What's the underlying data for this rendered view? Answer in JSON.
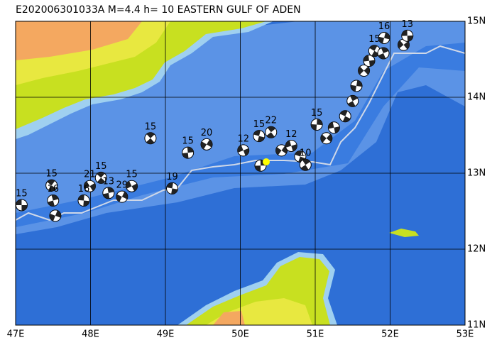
{
  "map": {
    "title": "E202006301033A M=4.4 h= 10 EASTERN GULF OF ADEN",
    "lonlim": [
      47,
      53
    ],
    "latlim": [
      11,
      15
    ],
    "lon_ticks": [
      {
        "value": 47,
        "label": "47E"
      },
      {
        "value": 48,
        "label": "48E"
      },
      {
        "value": 49,
        "label": "49E"
      },
      {
        "value": 50,
        "label": "50E"
      },
      {
        "value": 51,
        "label": "51E"
      },
      {
        "value": 52,
        "label": "52E"
      },
      {
        "value": 53,
        "label": "53E"
      }
    ],
    "lat_ticks": [
      {
        "value": 11,
        "label": "11N"
      },
      {
        "value": 12,
        "label": "12N"
      },
      {
        "value": 13,
        "label": "13N"
      },
      {
        "value": 14,
        "label": "14N"
      },
      {
        "value": 15,
        "label": "15N"
      }
    ],
    "events": [
      {
        "lon": 47.08,
        "lat": 12.58,
        "depth": "15"
      },
      {
        "lon": 47.48,
        "lat": 12.84,
        "depth": "15"
      },
      {
        "lon": 47.5,
        "lat": 12.64,
        "depth": "16"
      },
      {
        "lon": 47.53,
        "lat": 12.44,
        "depth": null
      },
      {
        "lon": 47.99,
        "lat": 12.83,
        "depth": "21"
      },
      {
        "lon": 47.91,
        "lat": 12.64,
        "depth": "16"
      },
      {
        "lon": 48.14,
        "lat": 12.94,
        "depth": "15"
      },
      {
        "lon": 48.24,
        "lat": 12.74,
        "depth": "13"
      },
      {
        "lon": 48.42,
        "lat": 12.69,
        "depth": "29"
      },
      {
        "lon": 48.55,
        "lat": 12.83,
        "depth": "15"
      },
      {
        "lon": 49.09,
        "lat": 12.8,
        "depth": "19"
      },
      {
        "lon": 48.8,
        "lat": 13.46,
        "depth": "15"
      },
      {
        "lon": 49.3,
        "lat": 13.27,
        "depth": "15"
      },
      {
        "lon": 49.55,
        "lat": 13.38,
        "depth": "20"
      },
      {
        "lon": 50.04,
        "lat": 13.3,
        "depth": "12"
      },
      {
        "lon": 50.25,
        "lat": 13.49,
        "depth": "15"
      },
      {
        "lon": 50.41,
        "lat": 13.54,
        "depth": "22"
      },
      {
        "lon": 50.27,
        "lat": 13.1,
        "depth": null
      },
      {
        "lon": 50.55,
        "lat": 13.3,
        "depth": null
      },
      {
        "lon": 50.68,
        "lat": 13.36,
        "depth": "12"
      },
      {
        "lon": 50.8,
        "lat": 13.22,
        "depth": null
      },
      {
        "lon": 50.87,
        "lat": 13.11,
        "depth": "10"
      },
      {
        "lon": 51.02,
        "lat": 13.64,
        "depth": "15"
      },
      {
        "lon": 51.15,
        "lat": 13.46,
        "depth": null
      },
      {
        "lon": 51.25,
        "lat": 13.6,
        "depth": null
      },
      {
        "lon": 51.4,
        "lat": 13.75,
        "depth": null
      },
      {
        "lon": 51.5,
        "lat": 13.95,
        "depth": null
      },
      {
        "lon": 51.55,
        "lat": 14.15,
        "depth": null
      },
      {
        "lon": 51.65,
        "lat": 14.35,
        "depth": null
      },
      {
        "lon": 51.72,
        "lat": 14.48,
        "depth": null
      },
      {
        "lon": 51.79,
        "lat": 14.61,
        "depth": "15"
      },
      {
        "lon": 51.91,
        "lat": 14.58,
        "depth": null
      },
      {
        "lon": 51.92,
        "lat": 14.78,
        "depth": "16"
      },
      {
        "lon": 52.18,
        "lat": 14.69,
        "depth": null
      },
      {
        "lon": 52.23,
        "lat": 14.81,
        "depth": "13"
      }
    ]
  }
}
